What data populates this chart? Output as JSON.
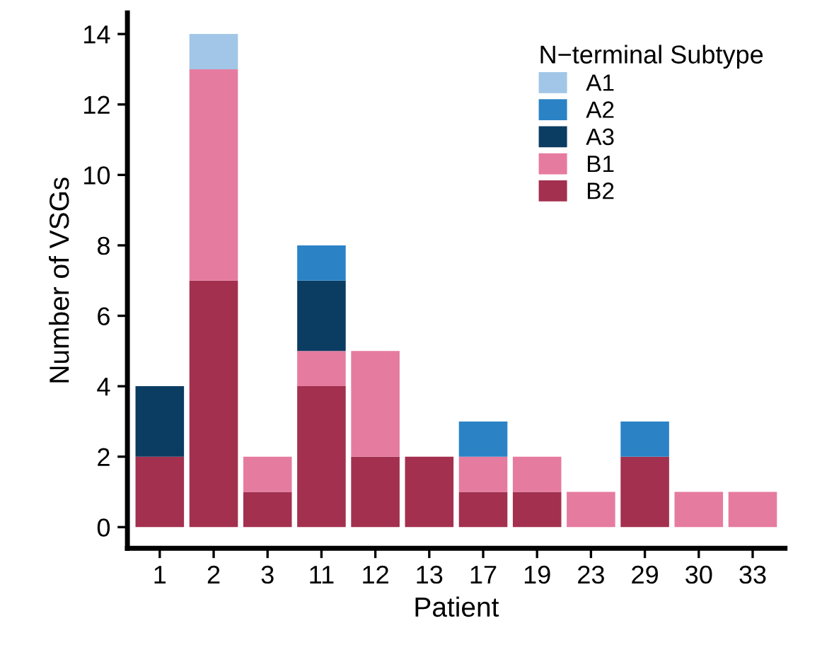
{
  "chart_data": {
    "type": "bar",
    "xlabel": "Patient",
    "ylabel": "Number of VSGs",
    "legend_title": "N−terminal Subtype",
    "categories": [
      "1",
      "2",
      "3",
      "11",
      "12",
      "13",
      "17",
      "19",
      "23",
      "29",
      "30",
      "33"
    ],
    "stacked": true,
    "ylim": [
      -0.6,
      14.6
    ],
    "yticks": [
      0,
      2,
      4,
      6,
      8,
      10,
      12,
      14
    ],
    "grid": false,
    "legend": "top right",
    "series": [
      {
        "name": "B2",
        "color": "#a3304f",
        "values": [
          2,
          7,
          1,
          4,
          2,
          2,
          1,
          1,
          0,
          2,
          0,
          0
        ]
      },
      {
        "name": "B1",
        "color": "#e67ba0",
        "values": [
          0,
          6,
          1,
          1,
          3,
          0,
          1,
          1,
          1,
          0,
          1,
          1
        ]
      },
      {
        "name": "A3",
        "color": "#0b3c62",
        "values": [
          2,
          0,
          0,
          2,
          0,
          0,
          0,
          0,
          0,
          0,
          0,
          0
        ]
      },
      {
        "name": "A2",
        "color": "#2b83c6",
        "values": [
          0,
          0,
          0,
          1,
          0,
          0,
          1,
          0,
          0,
          1,
          0,
          0
        ]
      },
      {
        "name": "A1",
        "color": "#a1c6e7",
        "values": [
          0,
          1,
          0,
          0,
          0,
          0,
          0,
          0,
          0,
          0,
          0,
          0
        ]
      }
    ]
  }
}
